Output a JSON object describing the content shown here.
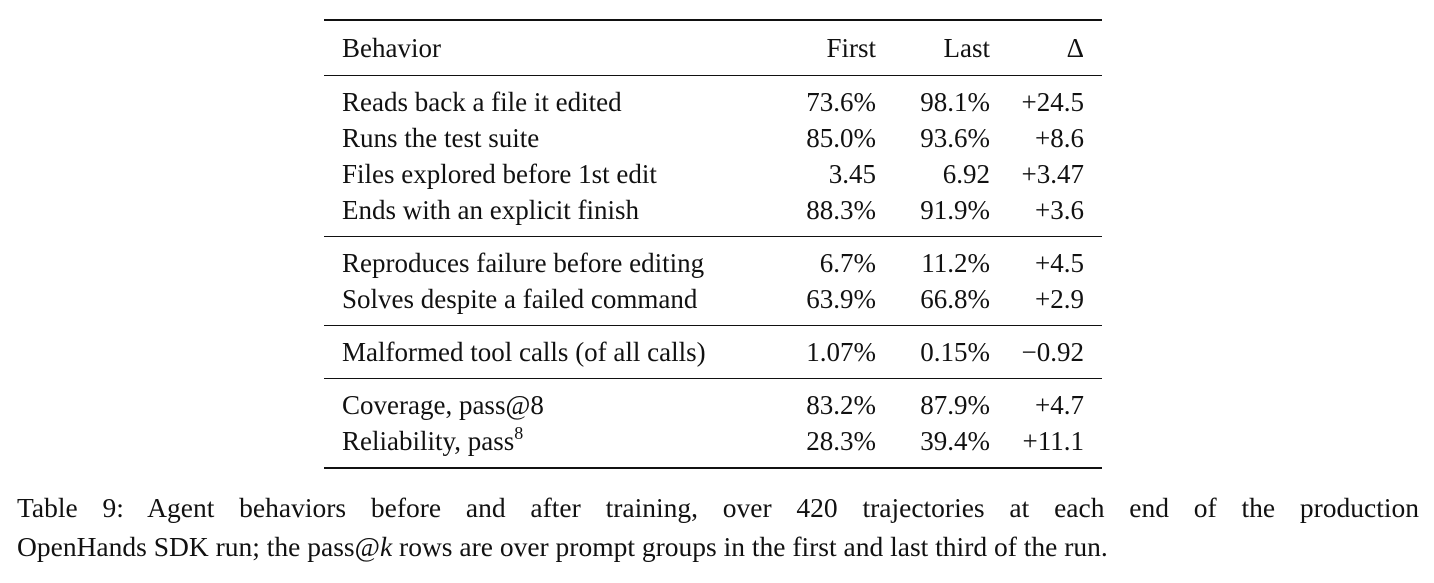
{
  "table": {
    "headers": {
      "behavior": "Behavior",
      "first": "First",
      "last": "Last",
      "delta": "Δ"
    },
    "groups": [
      [
        {
          "behavior": "Reads back a file it edited",
          "first": "73.6%",
          "last": "98.1%",
          "delta": "+24.5"
        },
        {
          "behavior": "Runs the test suite",
          "first": "85.0%",
          "last": "93.6%",
          "delta": "+8.6"
        },
        {
          "behavior": "Files explored before 1st edit",
          "first": "3.45",
          "last": "6.92",
          "delta": "+3.47"
        },
        {
          "behavior": "Ends with an explicit finish",
          "first": "88.3%",
          "last": "91.9%",
          "delta": "+3.6"
        }
      ],
      [
        {
          "behavior": "Reproduces failure before editing",
          "first": "6.7%",
          "last": "11.2%",
          "delta": "+4.5"
        },
        {
          "behavior": "Solves despite a failed command",
          "first": "63.9%",
          "last": "66.8%",
          "delta": "+2.9"
        }
      ],
      [
        {
          "behavior": "Malformed tool calls (of all calls)",
          "first": "1.07%",
          "last": "0.15%",
          "delta": "−0.92"
        }
      ],
      [
        {
          "behavior": "Coverage, pass@8",
          "first": "83.2%",
          "last": "87.9%",
          "delta": "+4.7"
        },
        {
          "behavior": "Reliability, pass",
          "behavior_sup": "8",
          "first": "28.3%",
          "last": "39.4%",
          "delta": "+11.1"
        }
      ]
    ]
  },
  "caption": {
    "line1": "Table 9:  Agent behaviors before and after training, over 420 trajectories at each end of the production",
    "line2_a": "OpenHands SDK run; the pass@",
    "line2_k": "k",
    "line2_b": " rows are over prompt groups in the first and last third of the run."
  }
}
